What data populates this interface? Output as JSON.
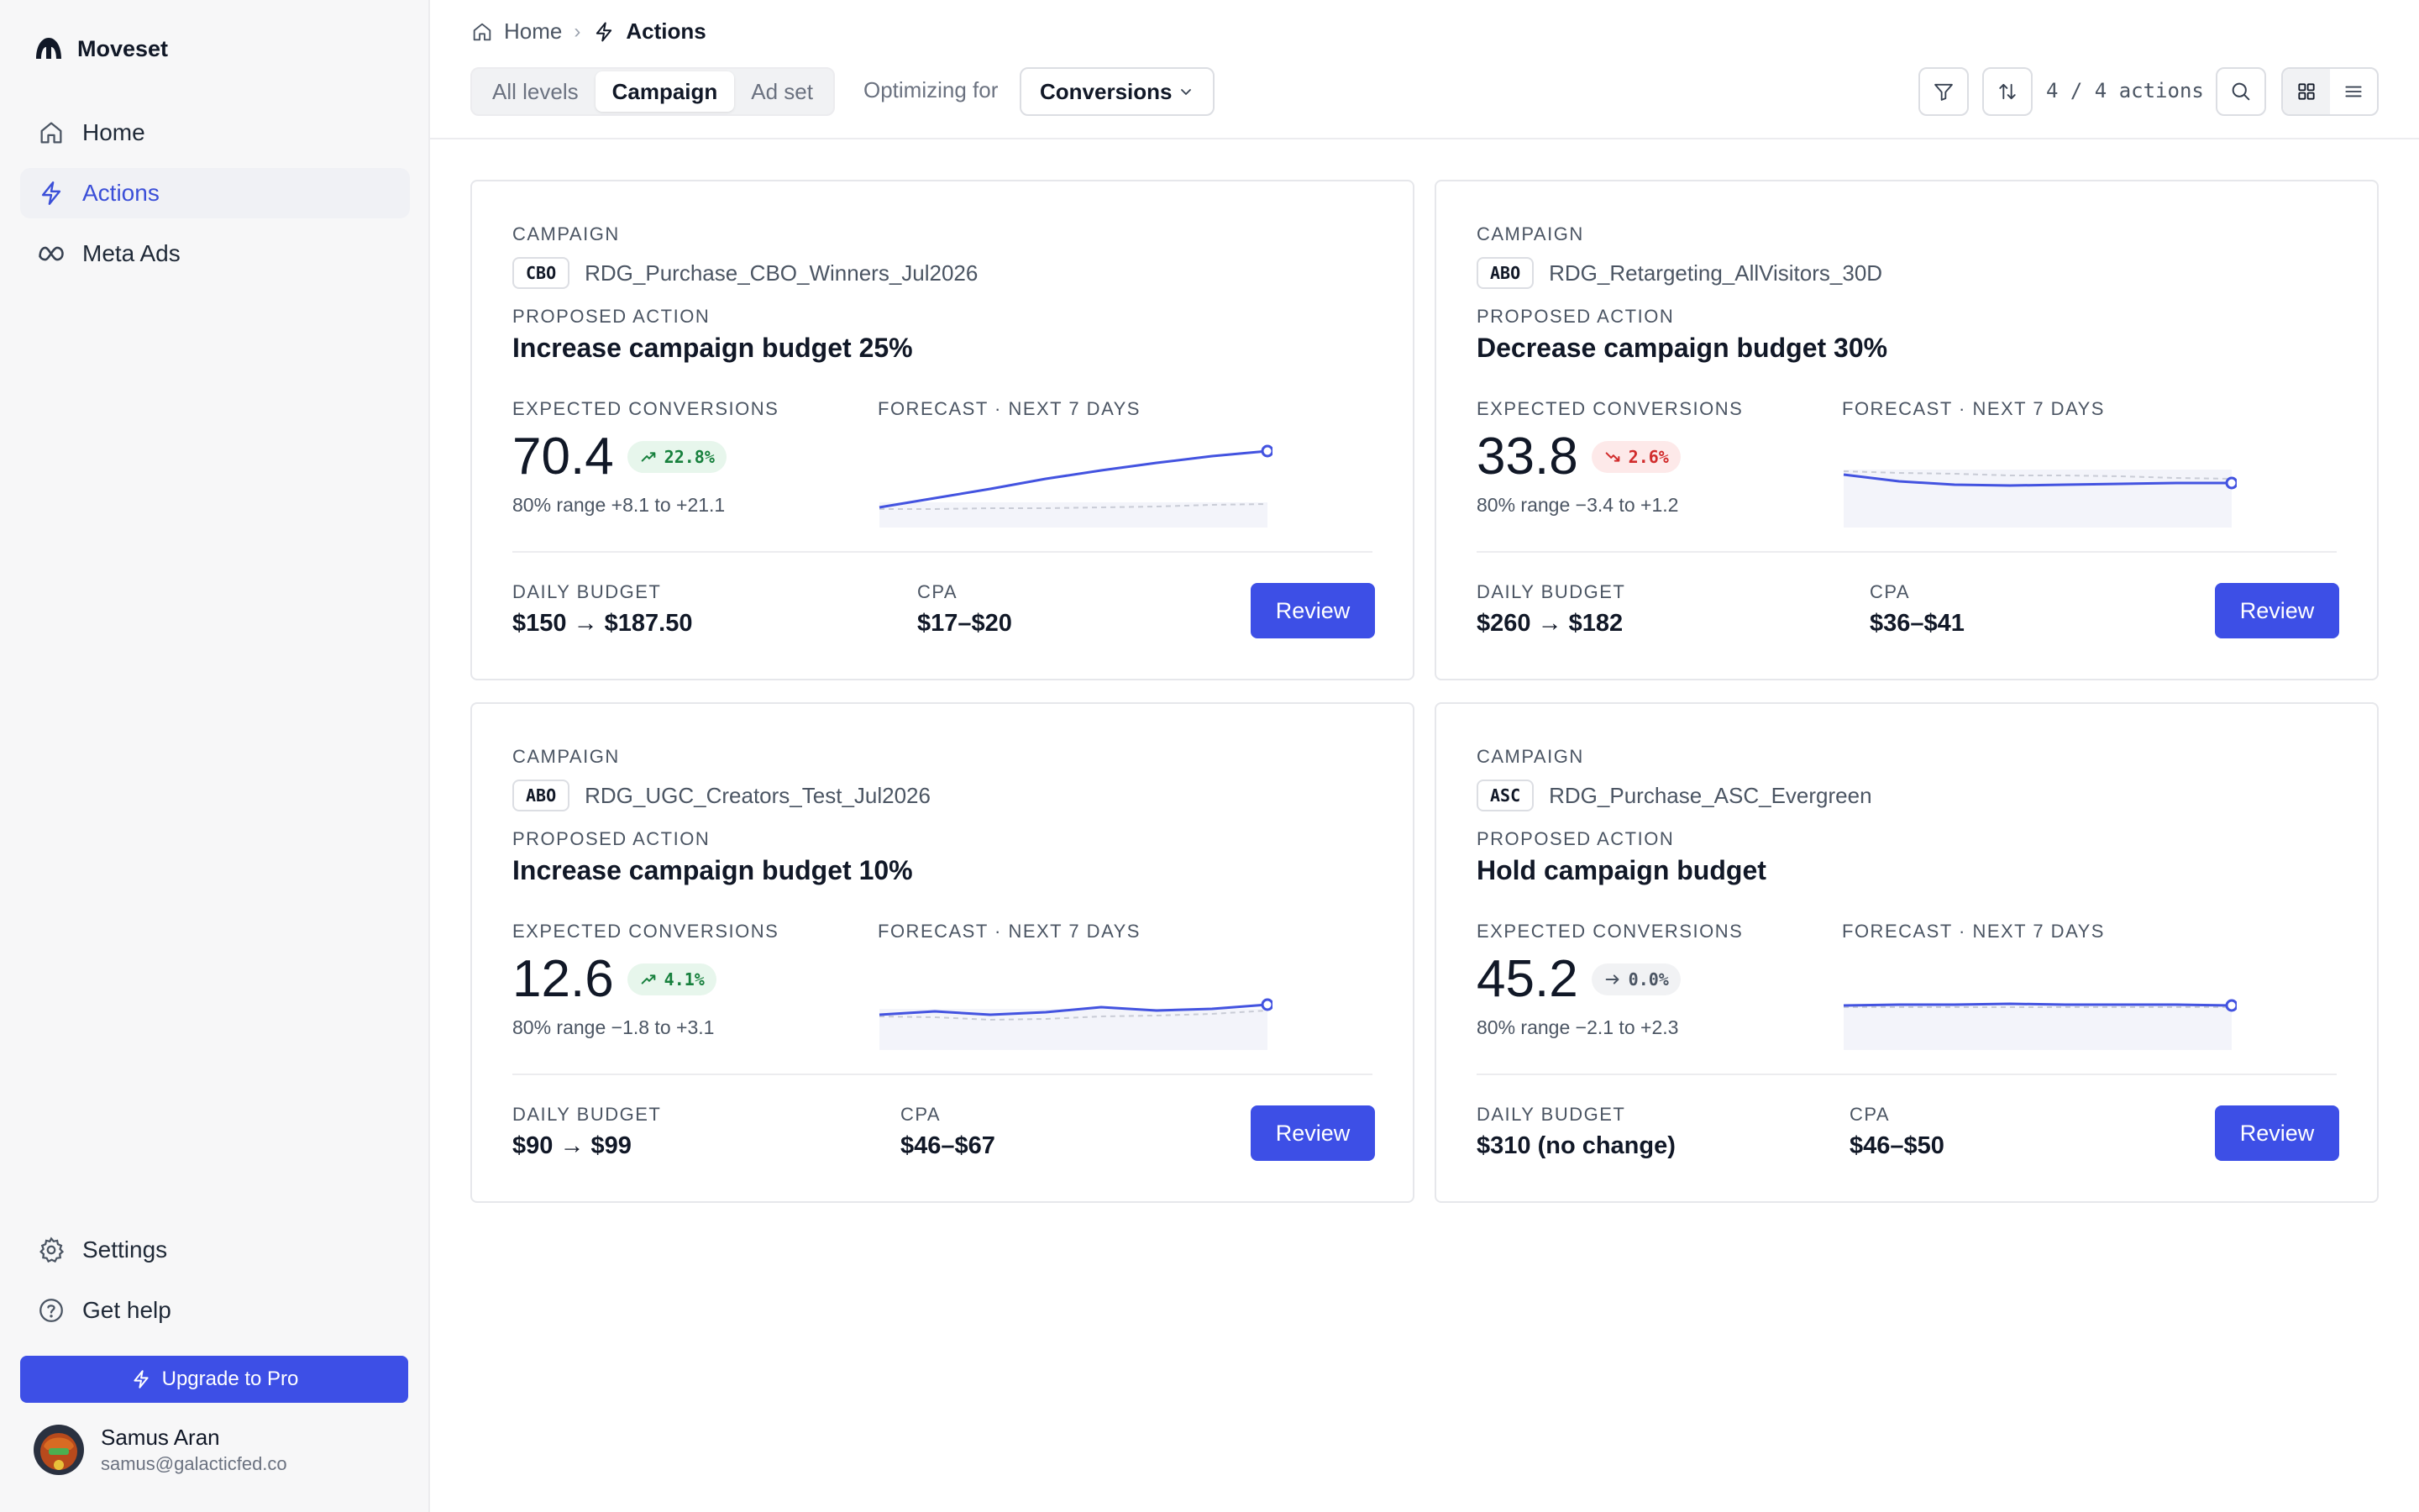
{
  "app": {
    "name": "Moveset"
  },
  "sidebar": {
    "nav": [
      {
        "label": "Home",
        "icon": "home-icon",
        "active": false
      },
      {
        "label": "Actions",
        "icon": "lightning-icon",
        "active": true
      },
      {
        "label": "Meta Ads",
        "icon": "meta-icon",
        "active": false
      }
    ],
    "footer_nav": [
      {
        "label": "Settings",
        "icon": "gear-icon"
      },
      {
        "label": "Get help",
        "icon": "help-circle-icon"
      }
    ],
    "upgrade_label": "Upgrade to Pro",
    "user": {
      "name": "Samus Aran",
      "email": "samus@galacticfed.co"
    }
  },
  "header": {
    "breadcrumb": {
      "home": "Home",
      "current": "Actions"
    },
    "levels": [
      "All levels",
      "Campaign",
      "Ad set"
    ],
    "active_level": "Campaign",
    "optimizing_label": "Optimizing for",
    "optimizing_value": "Conversions",
    "action_count": "4 / 4 actions",
    "view_mode": "grid"
  },
  "labels": {
    "campaign": "Campaign",
    "proposed_action": "Proposed action",
    "expected_conversions": "Expected conversions",
    "forecast": "Forecast · next 7 days",
    "daily_budget": "Daily budget",
    "cpa": "CPA",
    "review": "Review"
  },
  "colors": {
    "accent": "#3d4fe6",
    "positive": "#17803d",
    "negative": "#d12b2b",
    "forecast_line": "#4353e0"
  },
  "cards": [
    {
      "tag": "CBO",
      "name": "RDG_Purchase_CBO_Winners_Jul2026",
      "action": "Increase campaign budget 25%",
      "expected": "70.4",
      "delta": "22.8%",
      "trend": "up",
      "range": "80% range +8.1 to +21.1",
      "budget": "$150 → $187.50",
      "cpa": "$17–$20",
      "forecast": [
        0.18,
        0.29,
        0.4,
        0.52,
        0.62,
        0.71,
        0.79,
        0.85
      ],
      "baseline": [
        0.16,
        0.16,
        0.17,
        0.17,
        0.18,
        0.19,
        0.21,
        0.22
      ]
    },
    {
      "tag": "ABO",
      "name": "RDG_Retargeting_AllVisitors_30D",
      "action": "Decrease campaign budget 30%",
      "expected": "33.8",
      "delta": "2.6%",
      "trend": "down",
      "range": "80% range −3.4 to +1.2",
      "budget": "$260 → $182",
      "cpa": "$36–$41",
      "forecast": [
        0.57,
        0.49,
        0.45,
        0.44,
        0.45,
        0.46,
        0.47,
        0.47
      ],
      "baseline": [
        0.61,
        0.59,
        0.58,
        0.56,
        0.56,
        0.55,
        0.53,
        0.52
      ]
    },
    {
      "tag": "ABO",
      "name": "RDG_UGC_Creators_Test_Jul2026",
      "action": "Increase campaign budget 10%",
      "expected": "12.6",
      "delta": "4.1%",
      "trend": "up",
      "range": "80% range −1.8 to +3.1",
      "budget": "$90 → $99",
      "cpa": "$46–$67",
      "forecast": [
        0.36,
        0.4,
        0.36,
        0.39,
        0.45,
        0.41,
        0.43,
        0.48
      ],
      "baseline": [
        0.34,
        0.33,
        0.3,
        0.31,
        0.34,
        0.35,
        0.37,
        0.41
      ]
    },
    {
      "tag": "ASC",
      "name": "RDG_Purchase_ASC_Evergreen",
      "action": "Hold campaign budget",
      "expected": "45.2",
      "delta": "0.0%",
      "trend": "flat",
      "range": "80% range −2.1 to +2.3",
      "budget": "$310 (no change)",
      "cpa": "$46–$50",
      "forecast": [
        0.47,
        0.48,
        0.48,
        0.49,
        0.48,
        0.48,
        0.48,
        0.47
      ],
      "baseline": [
        0.45,
        0.45,
        0.45,
        0.45,
        0.45,
        0.45,
        0.45,
        0.45
      ]
    }
  ]
}
